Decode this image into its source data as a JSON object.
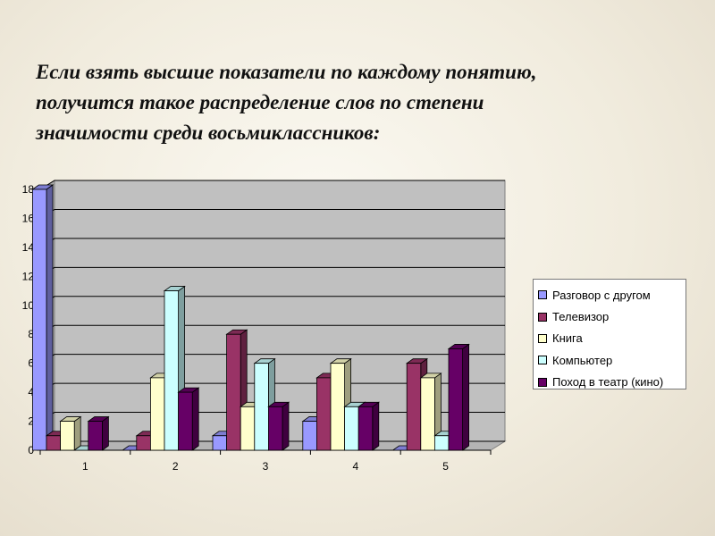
{
  "slide": {
    "title_lines": [
      "Если взять высшие показатели по каждому понятию,",
      "получится такое распределение слов по степени",
      "значимости среди восьмиклассников:"
    ]
  },
  "chart_data": {
    "type": "bar",
    "title": "",
    "xlabel": "",
    "ylabel": "",
    "categories": [
      "1",
      "2",
      "3",
      "4",
      "5"
    ],
    "ylim": [
      0,
      18
    ],
    "yticks": [
      0,
      2,
      4,
      6,
      8,
      10,
      12,
      14,
      16,
      18
    ],
    "grid": true,
    "three_d": true,
    "legend_position": "right",
    "series": [
      {
        "name": "Разговор с другом",
        "color": "#9999ff",
        "values": [
          18,
          0,
          1,
          2,
          0
        ]
      },
      {
        "name": "Телевизор",
        "color": "#993366",
        "values": [
          1,
          1,
          8,
          5,
          6
        ]
      },
      {
        "name": "Книга",
        "color": "#ffffcc",
        "values": [
          2,
          5,
          3,
          6,
          5
        ]
      },
      {
        "name": "Компьютер",
        "color": "#ccffff",
        "values": [
          0,
          11,
          6,
          3,
          1
        ]
      },
      {
        "name": "Поход в театр (кино)",
        "color": "#660066",
        "values": [
          2,
          4,
          3,
          3,
          7
        ]
      }
    ],
    "plot_background": "#c0c0c0"
  }
}
